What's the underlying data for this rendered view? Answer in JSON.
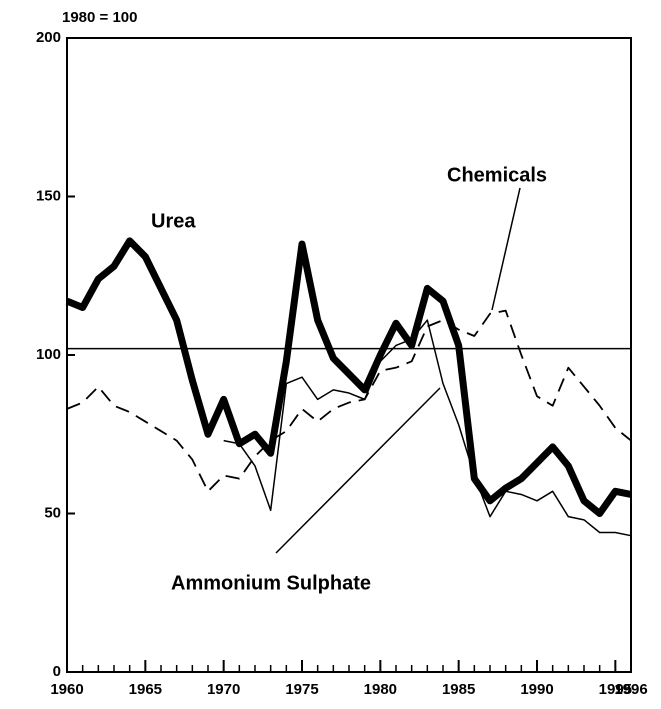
{
  "chart_data": {
    "type": "line",
    "unit_label": "1980 = 100",
    "x": [
      1960,
      1961,
      1962,
      1963,
      1964,
      1965,
      1966,
      1967,
      1968,
      1969,
      1970,
      1971,
      1972,
      1973,
      1974,
      1975,
      1976,
      1977,
      1978,
      1979,
      1980,
      1981,
      1982,
      1983,
      1984,
      1985,
      1986,
      1987,
      1988,
      1989,
      1990,
      1991,
      1992,
      1993,
      1994,
      1995,
      1996
    ],
    "series": [
      {
        "name": "Urea",
        "color": "#000000",
        "style": "thick",
        "values": [
          117,
          115,
          124,
          128,
          136,
          131,
          121,
          111,
          92,
          75,
          86,
          72,
          75,
          69,
          98,
          135,
          111,
          99,
          94,
          89,
          100,
          110,
          103,
          121,
          117,
          103,
          61,
          54,
          58,
          61,
          66,
          71,
          65,
          54,
          50,
          57,
          56
        ]
      },
      {
        "name": "Ammonium Sulphate",
        "color": "#000000",
        "style": "thin",
        "values": [
          null,
          null,
          null,
          null,
          null,
          null,
          null,
          null,
          null,
          null,
          73,
          72,
          65,
          51,
          91,
          93,
          86,
          89,
          88,
          86,
          98,
          103,
          105,
          111,
          91,
          78,
          62,
          49,
          57,
          56,
          54,
          57,
          49,
          48,
          44,
          44,
          43
        ]
      },
      {
        "name": "Chemicals",
        "color": "#000000",
        "style": "dashed",
        "values": [
          83,
          85,
          90,
          84,
          82,
          79,
          76,
          73,
          67,
          57,
          62,
          61,
          68,
          73,
          76,
          83,
          79,
          83,
          85,
          86,
          95,
          96,
          98,
          109,
          111,
          108,
          106,
          113,
          114,
          100,
          87,
          84,
          96,
          90,
          84,
          77,
          73
        ]
      }
    ],
    "reference_line": 102,
    "xlim": [
      1960,
      1996
    ],
    "xticks": [
      1960,
      1965,
      1970,
      1975,
      1980,
      1985,
      1990,
      1995,
      1996
    ],
    "ylim": [
      0,
      200
    ],
    "yticks": [
      0,
      50,
      100,
      150,
      200
    ],
    "grid": false
  }
}
